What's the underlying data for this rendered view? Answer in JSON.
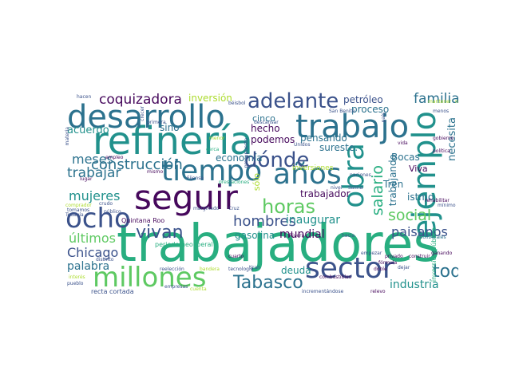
{
  "palette": {
    "dark_purple": "#46085c",
    "indigo": "#3b528b",
    "steel_blue": "#2c728e",
    "teal": "#21918c",
    "green_teal": "#28ae80",
    "green": "#5ec962",
    "lime": "#addc30",
    "yellow": "#fde725"
  },
  "words": {
    "trabajadores": "trabajadores",
    "refineria": "refinería",
    "desarrollo": "desarrollo",
    "trabajo": "trabajo",
    "seguir": "seguir",
    "tiempo": "tiempo",
    "ejemplo": "ejemplo",
    "obra": "obra",
    "millones": "millones",
    "sector": "sector",
    "anos": "años",
    "ocho": "ocho",
    "horas": "horas",
    "donde": "dónde",
    "adelante": "adelante",
    "construccion": "construcción",
    "coquizadora": "coquizadora",
    "tabasco": "Tabasco",
    "vivan": "vivan",
    "social": "social",
    "familia": "familia",
    "toda": "toda",
    "mujeres": "mujeres",
    "meses": "meses",
    "trabajar": "trabajar",
    "salario": "salario",
    "hombres": "hombres",
    "ultimos": "últimos",
    "chicago": "Chicago",
    "palabra": "palabra",
    "paisanos": "paisanos",
    "industria": "industria",
    "inaugurar": "inaugurar",
    "mundial": "mundial",
    "gasolina": "gasolina",
    "deuda": "deuda",
    "acuerdo": "acuerdo",
    "economia": "economía",
    "podemos": "podemos",
    "hecho": "hecho",
    "pensando": "pensando",
    "sureste": "sureste.",
    "bocas": "Bocas",
    "tren": "Tren",
    "istmo": "istmo",
    "viva": "Viva",
    "necesita": "necesita",
    "petroleo": "petróleo",
    "proceso": "proceso",
    "inversion": "inversión",
    "inversiones": "inversiones",
    "trabajando": "trabajando",
    "trabajador": "trabajador",
    "sino": "sino",
    "cinco": "cinco",
    "solo": "sólo",
    "quintana_roo": "Quintana Roo",
    "periodo_neoliberal": "periodo neoliberal",
    "recta_cortada": "recta cortada",
    "empresas": "empresas",
    "inversion_publica": "inversión pública",
    "incrementandose": "incrementándose",
    "relevo": "relevo",
    "industria_small": "industria",
    "rivera": "Rivera",
    "san_benito": "San Benito",
    "nivel": "nivel",
    "reeleccion": "reelección",
    "fijense": "Fíjense",
    "unidos": "Unidos",
    "presupuesto": "presupuesto",
    "gobierno": "gobierno",
    "politica": "política",
    "ganando": "ganando",
    "formula": "fórmula",
    "doble": "doble",
    "privado": "privado",
    "construir": "construir",
    "hacia": "hacia",
    "neoliberales": "neoliberales",
    "rehabilitar": "rehabilitar",
    "combustibles": "combustibles",
    "tecnologia": "tecnología",
    "marginado": "marginado",
    "cruz": "Cruz",
    "empleo": "empleo",
    "todavia": "Todavía",
    "publico": "público",
    "pueblo": "pueblo",
    "interes": "interés",
    "lugar": "lugar",
    "mismo": "mismo",
    "prestaciones": "prestaciones",
    "cerca": "cerca",
    "crudo": "crudo",
    "tomamos": "tomamos",
    "comprador": "comprador",
    "hacen": "hacen",
    "beisbol": "béisbol",
    "descansar": "descansar",
    "minimo": "mínimo",
    "naciones": "naciones",
    "empezar": "empezar",
    "salina": "Salina",
    "nuevo": "nuevo",
    "menos": "menos",
    "pais": "país",
    "vida": "vida",
    "mantener": "mantener",
    "cuarto": "cuarto",
    "tiran": "tiran",
    "distinto": "distinto",
    "dejar": "dejar",
    "bandera": "bandera",
    "cuenta": "cuenta",
    "materia": "materia",
    "menor": "menor",
    "crecer": "crecer",
    "primera": "primera"
  }
}
